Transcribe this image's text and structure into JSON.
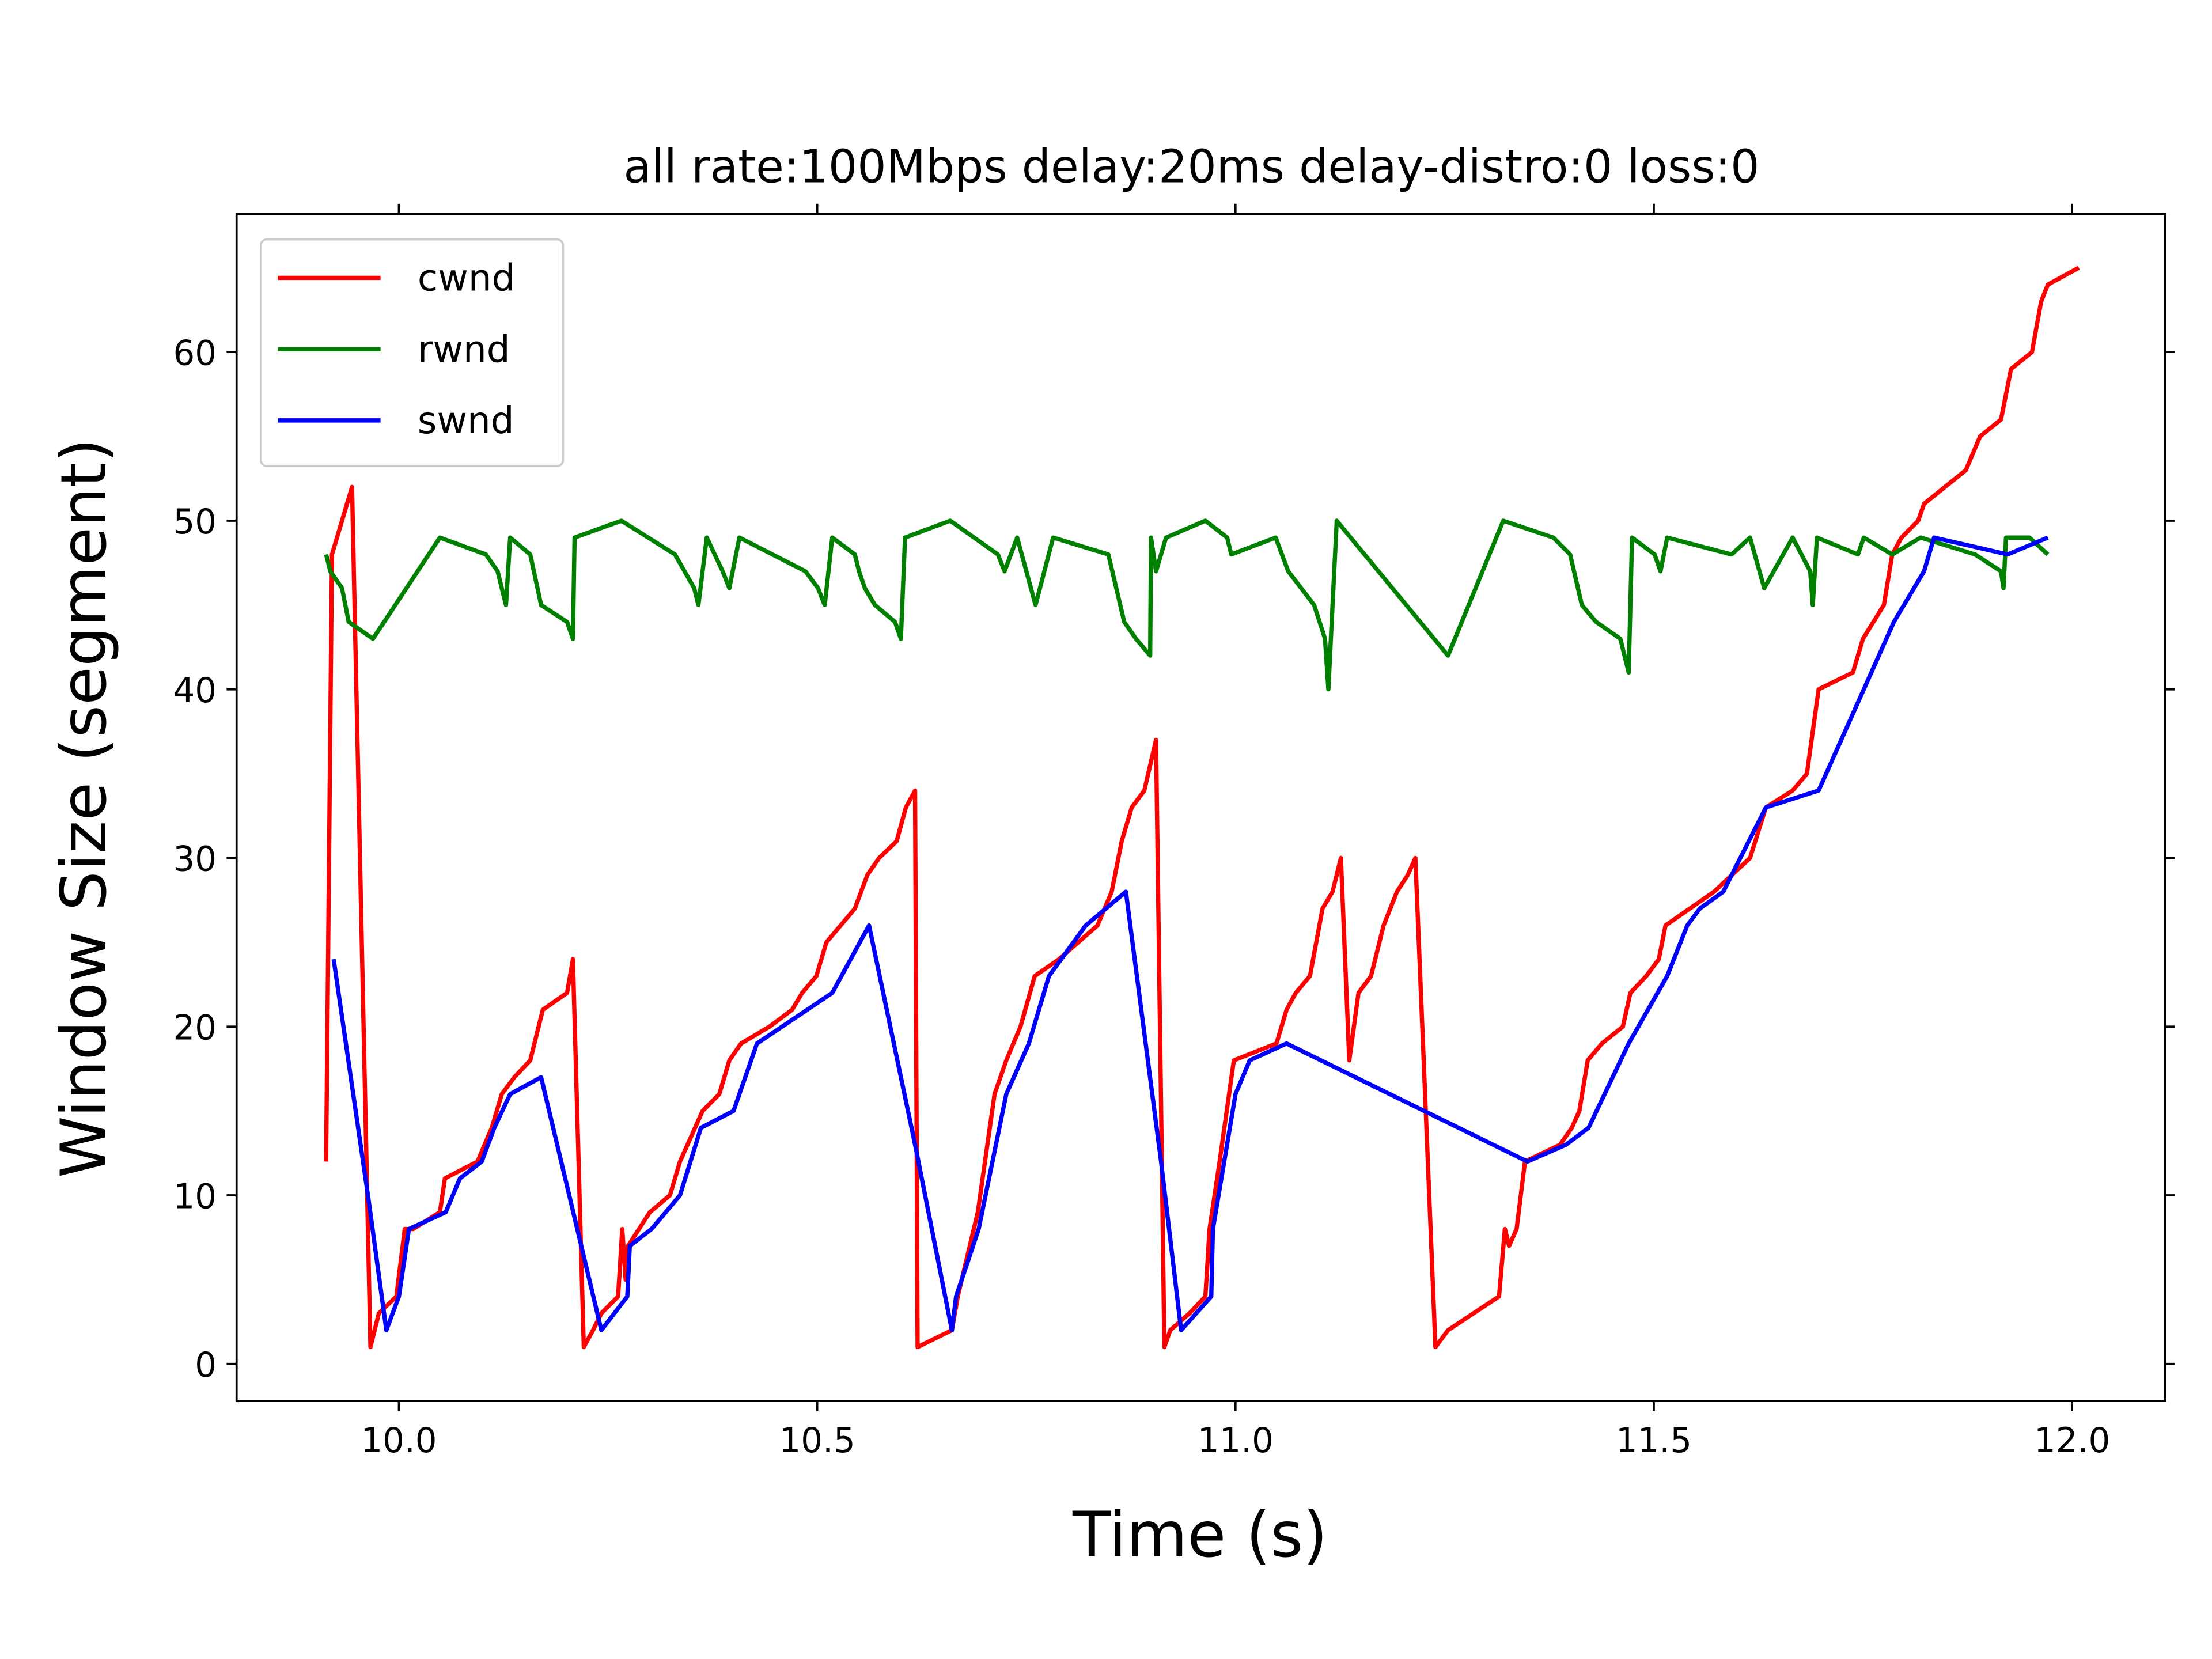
{
  "chart_data": {
    "type": "line",
    "title": "all  rate:100Mbps delay:20ms delay-distro:0 loss:0",
    "x_label": "Time (s)",
    "y_label": "Window Size (segment)",
    "xlim": [
      9.806,
      12.111
    ],
    "ylim": [
      -2.2,
      68.2
    ],
    "xticks": [
      {
        "value": 10.0,
        "label": "10.0"
      },
      {
        "value": 10.5,
        "label": "10.5"
      },
      {
        "value": 11.0,
        "label": "11.0"
      },
      {
        "value": 11.5,
        "label": "11.5"
      },
      {
        "value": 12.0,
        "label": "12.0"
      }
    ],
    "yticks": [
      0,
      10,
      20,
      30,
      40,
      50,
      60
    ],
    "grid": false,
    "mirror_ticks": true,
    "legend": "upper left",
    "series": [
      {
        "name": "cwnd",
        "color": "#ff0000",
        "x": [
          9.913,
          9.92,
          9.932,
          9.944,
          9.966,
          9.976,
          9.997,
          10.007,
          10.017,
          10.049,
          10.055,
          10.094,
          10.111,
          10.123,
          10.138,
          10.157,
          10.172,
          10.201,
          10.208,
          10.221,
          10.232,
          10.242,
          10.262,
          10.267,
          10.271,
          10.274,
          10.3,
          10.324,
          10.336,
          10.363,
          10.383,
          10.395,
          10.409,
          10.443,
          10.47,
          10.482,
          10.499,
          10.511,
          10.545,
          10.56,
          10.574,
          10.595,
          10.606,
          10.617,
          10.62,
          10.661,
          10.668,
          10.692,
          10.712,
          10.726,
          10.743,
          10.76,
          10.789,
          10.835,
          10.852,
          10.864,
          10.876,
          10.891,
          10.905,
          10.915,
          10.922,
          10.945,
          10.964,
          10.969,
          10.981,
          10.998,
          11.049,
          11.061,
          11.072,
          11.089,
          11.104,
          11.116,
          11.126,
          11.136,
          11.147,
          11.162,
          11.177,
          11.193,
          11.206,
          11.215,
          11.239,
          11.254,
          11.315,
          11.322,
          11.327,
          11.336,
          11.346,
          11.388,
          11.402,
          11.411,
          11.421,
          11.438,
          11.463,
          11.472,
          11.491,
          11.506,
          11.514,
          11.543,
          11.572,
          11.615,
          11.634,
          11.666,
          11.683,
          11.697,
          11.738,
          11.75,
          11.775,
          11.785,
          11.796,
          11.816,
          11.823,
          11.873,
          11.89,
          11.915,
          11.927,
          11.952,
          11.963,
          11.971,
          12.008
        ],
        "values": [
          12,
          48,
          50,
          52,
          1,
          3,
          4,
          8,
          8,
          9,
          11,
          12,
          14,
          16,
          17,
          18,
          21,
          22,
          24,
          1,
          2,
          3,
          4,
          8,
          5,
          7,
          9,
          10,
          12,
          15,
          16,
          18,
          19,
          20,
          21,
          22,
          23,
          25,
          27,
          29,
          30,
          31,
          33,
          34,
          1,
          2,
          4,
          9,
          16,
          18,
          20,
          23,
          24,
          26,
          28,
          31,
          33,
          34,
          37,
          1,
          2,
          3,
          4,
          8,
          12,
          18,
          19,
          21,
          22,
          23,
          27,
          28,
          30,
          18,
          22,
          23,
          26,
          28,
          29,
          30,
          1,
          2,
          4,
          8,
          7,
          8,
          12,
          13,
          14,
          15,
          18,
          19,
          20,
          22,
          23,
          24,
          26,
          27,
          28,
          30,
          33,
          34,
          35,
          40,
          41,
          43,
          45,
          48,
          49,
          50,
          51,
          53,
          55,
          56,
          59,
          60,
          63,
          64,
          65
        ]
      },
      {
        "name": "rwnd",
        "color": "#008000",
        "x": [
          9.913,
          9.918,
          9.932,
          9.94,
          9.969,
          10.049,
          10.104,
          10.118,
          10.128,
          10.133,
          10.157,
          10.17,
          10.201,
          10.208,
          10.21,
          10.266,
          10.33,
          10.353,
          10.358,
          10.368,
          10.387,
          10.395,
          10.407,
          10.486,
          10.501,
          10.509,
          10.518,
          10.545,
          10.55,
          10.557,
          10.569,
          10.593,
          10.6,
          10.605,
          10.659,
          10.716,
          10.724,
          10.739,
          10.761,
          10.782,
          10.848,
          10.867,
          10.881,
          10.898,
          10.899,
          10.905,
          10.917,
          10.964,
          10.99,
          10.995,
          11.048,
          11.063,
          11.094,
          11.107,
          11.111,
          11.121,
          11.254,
          11.32,
          11.38,
          11.4,
          11.414,
          11.431,
          11.46,
          11.47,
          11.474,
          11.501,
          11.508,
          11.516,
          11.593,
          11.615,
          11.632,
          11.666,
          11.687,
          11.69,
          11.695,
          11.744,
          11.751,
          11.785,
          11.819,
          11.884,
          11.915,
          11.918,
          11.921,
          11.949,
          11.971
        ],
        "values": [
          48,
          47,
          46,
          44,
          43,
          49,
          48,
          47,
          45,
          49,
          48,
          45,
          44,
          43,
          49,
          50,
          48,
          46,
          45,
          49,
          47,
          46,
          49,
          47,
          46,
          45,
          49,
          48,
          47,
          46,
          45,
          44,
          43,
          49,
          50,
          48,
          47,
          49,
          45,
          49,
          48,
          44,
          43,
          42,
          49,
          47,
          49,
          50,
          49,
          48,
          49,
          47,
          45,
          43,
          40,
          50,
          42,
          50,
          49,
          48,
          45,
          44,
          43,
          41,
          49,
          48,
          47,
          49,
          48,
          49,
          46,
          49,
          47,
          45,
          49,
          48,
          49,
          48,
          49,
          48,
          47,
          46,
          49,
          49,
          48
        ]
      },
      {
        "name": "swnd",
        "color": "#0000ff",
        "x": [
          9.922,
          9.963,
          9.985,
          10.0,
          10.012,
          10.056,
          10.073,
          10.099,
          10.114,
          10.133,
          10.17,
          10.218,
          10.242,
          10.273,
          10.276,
          10.302,
          10.336,
          10.361,
          10.4,
          10.428,
          10.518,
          10.562,
          10.617,
          10.661,
          10.666,
          10.693,
          10.726,
          10.753,
          10.777,
          10.821,
          10.869,
          10.911,
          10.935,
          10.971,
          10.973,
          11.0,
          11.017,
          11.061,
          11.349,
          11.395,
          11.422,
          11.47,
          11.516,
          11.54,
          11.555,
          11.583,
          11.634,
          11.697,
          11.751,
          11.787,
          11.823,
          11.835,
          11.923,
          11.971
        ],
        "values": [
          24,
          10,
          2,
          4,
          8,
          9,
          11,
          12,
          14,
          16,
          17,
          7,
          2,
          4,
          7,
          8,
          10,
          14,
          15,
          19,
          22,
          26,
          13,
          2,
          4,
          8,
          16,
          19,
          23,
          26,
          28,
          12,
          2,
          4,
          8,
          16,
          18,
          19,
          12,
          13,
          14,
          19,
          23,
          26,
          27,
          28,
          33,
          34,
          40,
          44,
          47,
          49,
          48,
          49
        ]
      }
    ]
  }
}
